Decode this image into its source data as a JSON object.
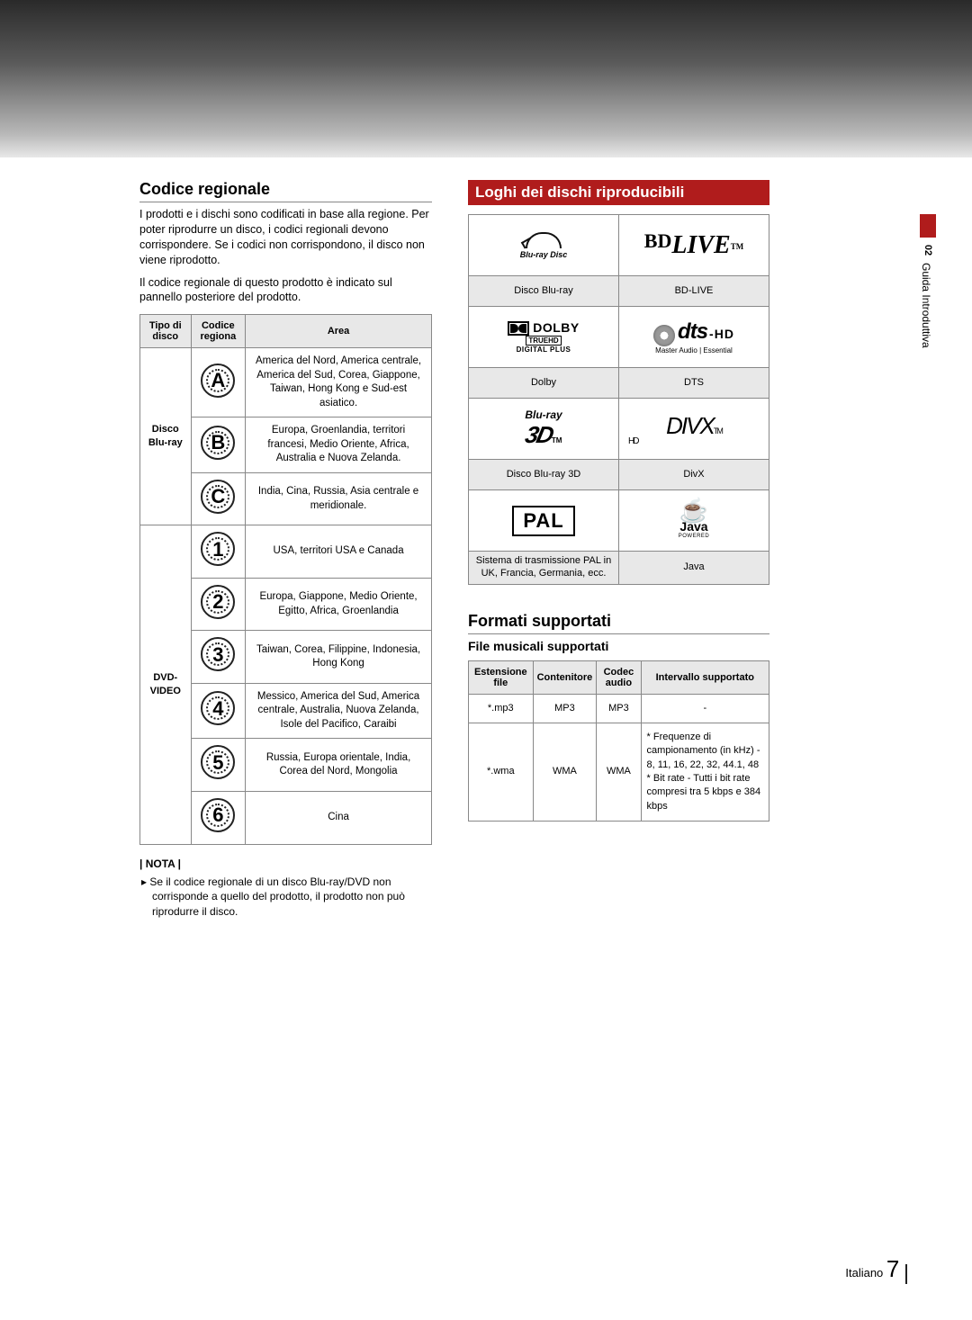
{
  "left": {
    "title": "Codice regionale",
    "para1": "I prodotti e i dischi sono codificati in base alla regione. Per poter riprodurre un disco, i codici regionali devono corrispondere. Se i codici non corrispondono, il disco non viene riprodotto.",
    "para2": "Il codice regionale di questo prodotto è indicato sul pannello posteriore del prodotto.",
    "table_headers": {
      "col1": "Tipo di disco",
      "col2": "Codice regiona",
      "col3": "Area"
    },
    "bluray_label": "Disco Blu-ray",
    "dvd_label": "DVD-VIDEO",
    "rows": {
      "a": "America del Nord, America centrale, America del Sud, Corea, Giappone, Taiwan, Hong Kong e Sud-est asiatico.",
      "b": "Europa, Groenlandia, territori francesi, Medio Oriente, Africa, Australia e Nuova Zelanda.",
      "c": "India, Cina, Russia, Asia centrale e meridionale.",
      "r1": "USA, territori USA e Canada",
      "r2": "Europa, Giappone, Medio Oriente, Egitto, Africa, Groenlandia",
      "r3": "Taiwan, Corea, Filippine, Indonesia, Hong Kong",
      "r4": "Messico, America del Sud, America centrale, Australia, Nuova Zelanda, Isole del Pacifico, Caraibi",
      "r5": "Russia, Europa orientale, India, Corea del Nord, Mongolia",
      "r6": "Cina"
    },
    "note_label": "| NOTA |",
    "note_text": "Se il codice regionale di un disco Blu-ray/DVD non corrisponde a quello del prodotto, il prodotto non può riprodurre il disco."
  },
  "right": {
    "title_logos": "Loghi dei dischi riproducibili",
    "logos": {
      "bluray_disc_word": "Blu-ray Disc",
      "bluray_label": "Disco Blu-ray",
      "bdlive_bd": "BD",
      "bdlive_live": "LIVE",
      "bdlive_tm": "TM",
      "bdlive_label": "BD-LIVE",
      "dolby_word": "DOLBY",
      "dolby_truehd": "TRUEHD",
      "dolby_digitalplus": "DIGITAL PLUS",
      "dolby_label": "Dolby",
      "dts_text": "dts",
      "dts_hd": "-HD",
      "dts_sub": "Master Audio | Essential",
      "dts_label": "DTS",
      "br3d_bluray": "Blu-ray",
      "br3d_3d": "3D",
      "br3d_tm": "TM",
      "br3d_label": "Disco Blu-ray 3D",
      "divx_text": "DIVX",
      "divx_hd": "HD",
      "divx_tm": "TM",
      "divx_label": "DivX",
      "pal_text": "PAL",
      "pal_label": "Sistema di trasmissione PAL in UK, Francia, Germania, ecc.",
      "java_word": "Java",
      "java_powered": "POWERED",
      "java_label": "Java"
    },
    "title_formats": "Formati supportati",
    "subtitle_music": "File musicali supportati",
    "music_headers": {
      "ext": "Estensione file",
      "container": "Contenitore",
      "codec": "Codec audio",
      "range": "Intervallo supportato"
    },
    "music_rows": {
      "mp3_ext": "*.mp3",
      "mp3_container": "MP3",
      "mp3_codec": "MP3",
      "mp3_range": "-",
      "wma_ext": "*.wma",
      "wma_container": "WMA",
      "wma_codec": "WMA",
      "wma_range": "* Frequenze di campionamento (in kHz) - 8, 11, 16, 22, 32, 44.1, 48\n* Bit rate - Tutti i bit rate compresi tra 5 kbps e 384 kbps"
    }
  },
  "side": {
    "num": "02",
    "text": "Guida Introduttiva"
  },
  "footer": {
    "lang": "Italiano",
    "page": "7"
  },
  "colors": {
    "red": "#b01c1c",
    "header_bg": "#e8e8e8",
    "border": "#888"
  }
}
